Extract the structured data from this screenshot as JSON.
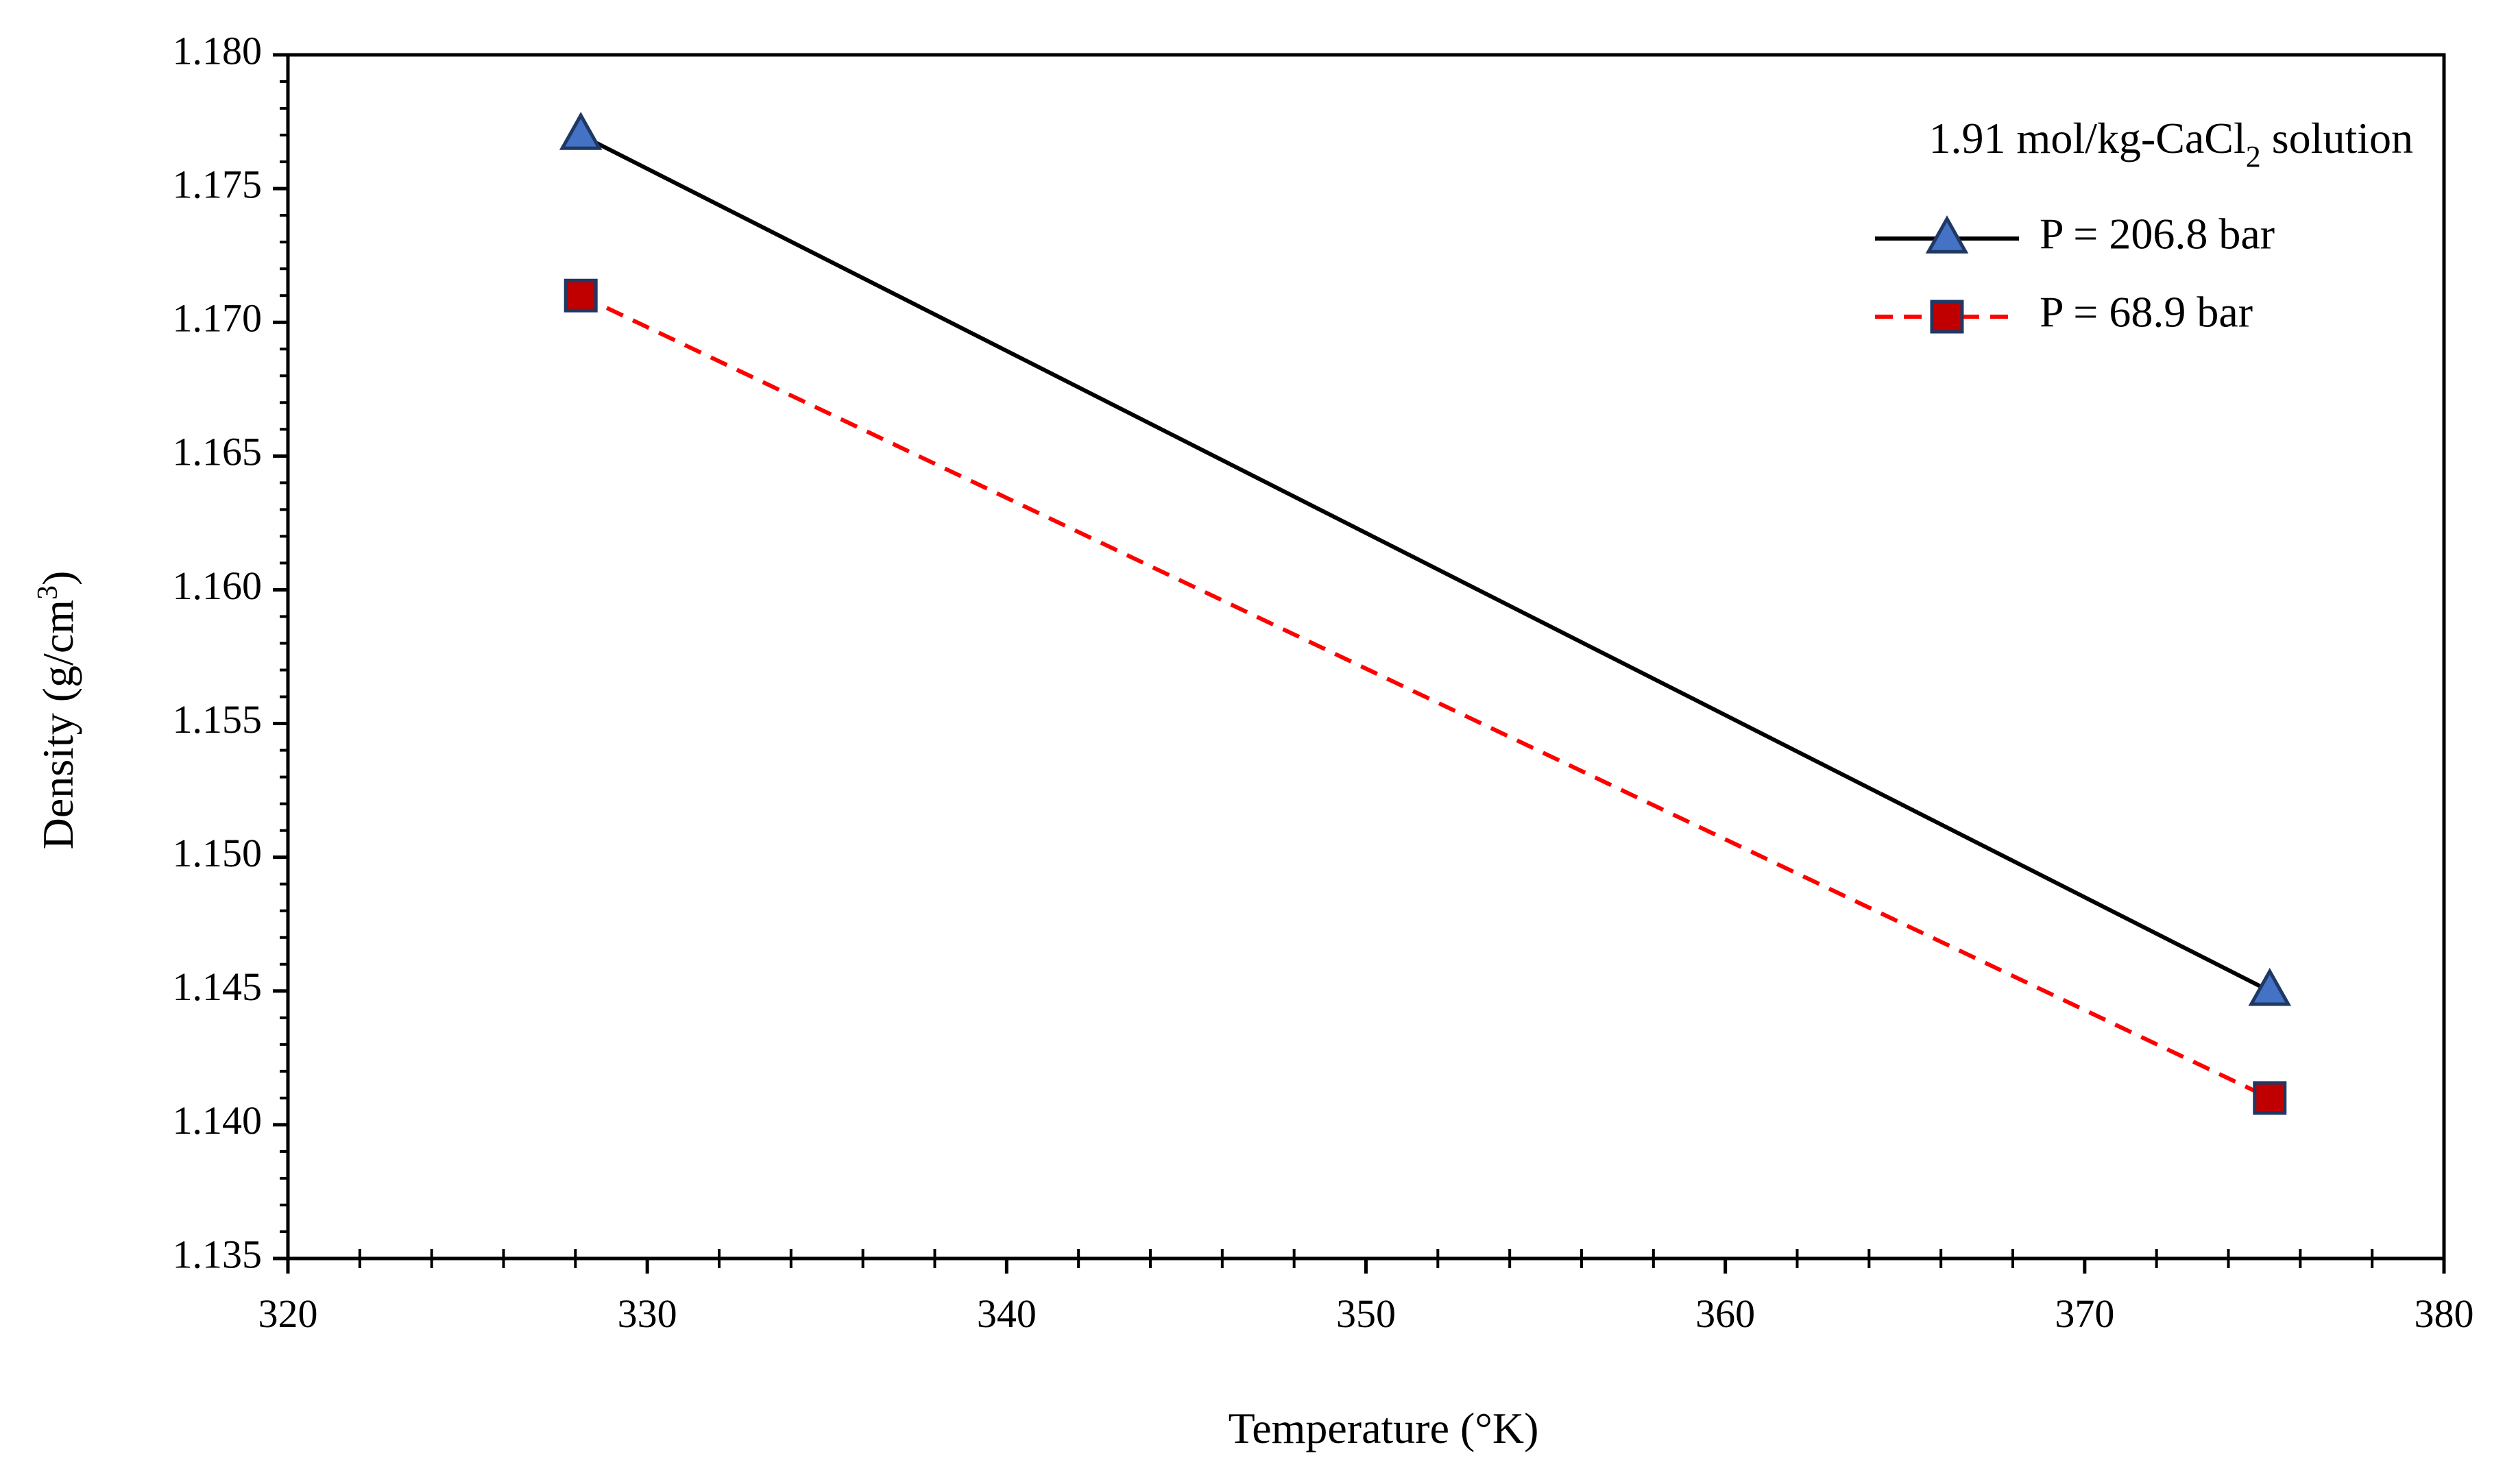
{
  "chart_data": {
    "type": "line",
    "title": "",
    "xlabel": "Temperature (°K)",
    "ylabel_main": "Density (g/cm",
    "ylabel_sup": "3",
    "ylabel_close": ")",
    "xlim": [
      320,
      380
    ],
    "ylim": [
      1.135,
      1.18
    ],
    "x_ticks": [
      320,
      330,
      340,
      350,
      360,
      370,
      380
    ],
    "y_ticks": [
      1.135,
      1.14,
      1.145,
      1.15,
      1.155,
      1.16,
      1.165,
      1.17,
      1.175,
      1.18
    ],
    "x_tick_labels": [
      "320",
      "330",
      "340",
      "350",
      "360",
      "370",
      "380"
    ],
    "y_tick_labels": [
      "1.135",
      "1.140",
      "1.145",
      "1.150",
      "1.155",
      "1.160",
      "1.165",
      "1.170",
      "1.175",
      "1.180"
    ],
    "legend_title_main": "1.91 mol/kg-CaCl",
    "legend_title_sub": "2",
    "legend_title_end": " solution",
    "legend_position": "top-right",
    "grid": false,
    "series": [
      {
        "name": "P = 206.8 bar",
        "x": [
          328.15,
          375.15
        ],
        "y": [
          1.177,
          1.145
        ],
        "line_color": "#000000",
        "line_style": "solid",
        "marker": "triangle",
        "marker_fill": "#4472C4",
        "marker_edge": "#1F3864"
      },
      {
        "name": "P = 68.9 bar",
        "x": [
          328.15,
          375.15
        ],
        "y": [
          1.171,
          1.141
        ],
        "line_color": "#FF0000",
        "line_style": "dashed",
        "marker": "square",
        "marker_fill": "#C00000",
        "marker_edge": "#1F3864"
      }
    ]
  }
}
